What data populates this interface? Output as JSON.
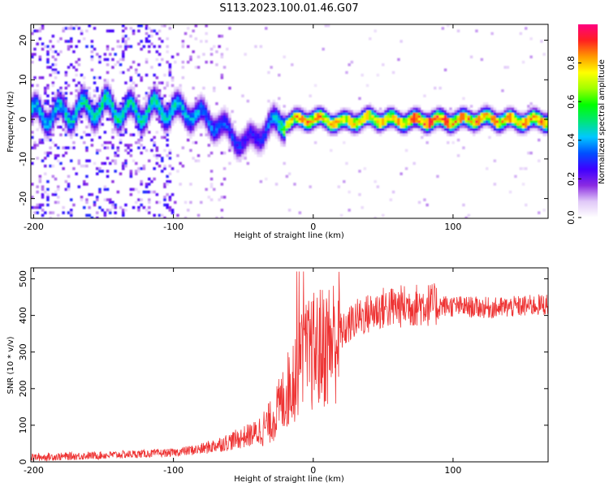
{
  "title": "S113.2023.100.01.46.G07",
  "chart_data": [
    {
      "type": "heatmap",
      "xlabel": "Height of straight line (km)",
      "ylabel": "Frequency (Hz)",
      "xlim": [
        -202,
        168
      ],
      "ylim": [
        -25,
        24
      ],
      "xticks": [
        "-200",
        "-100",
        "0",
        "100"
      ],
      "yticks": [
        "-20",
        "-10",
        "0",
        "10",
        "20"
      ],
      "colorbar": {
        "label": "Normalized spectral amplitude",
        "range": [
          0,
          1
        ],
        "ticks": [
          "0.0",
          "0.2",
          "0.4",
          "0.6",
          "0.8"
        ],
        "colors": [
          "#ffffff",
          "#e0c8f8",
          "#8a2be2",
          "#3f00ff",
          "#0050ff",
          "#00c8ff",
          "#00e676",
          "#00ff00",
          "#a0ff00",
          "#ffff00",
          "#ff9900",
          "#ff2020",
          "#ff0080"
        ]
      },
      "ridge": [
        {
          "x": -185,
          "f": 1.5,
          "amp": 0.45
        },
        {
          "x": -170,
          "f": 2.5,
          "amp": 0.5
        },
        {
          "x": -150,
          "f": 3.5,
          "amp": 0.55
        },
        {
          "x": -130,
          "f": 2.0,
          "amp": 0.5
        },
        {
          "x": -110,
          "f": 3.0,
          "amp": 0.5
        },
        {
          "x": -95,
          "f": 2.5,
          "amp": 0.45
        },
        {
          "x": -80,
          "f": 1.0,
          "amp": 0.4
        },
        {
          "x": -65,
          "f": -2.0,
          "amp": 0.35
        },
        {
          "x": -50,
          "f": -6.0,
          "amp": 0.3
        },
        {
          "x": -42,
          "f": -4.0,
          "amp": 0.3
        },
        {
          "x": -30,
          "f": -1.0,
          "amp": 0.4
        },
        {
          "x": -15,
          "f": 0.0,
          "amp": 0.85
        },
        {
          "x": 0,
          "f": 0.5,
          "amp": 0.85
        },
        {
          "x": 20,
          "f": -0.5,
          "amp": 0.8
        },
        {
          "x": 40,
          "f": 0.5,
          "amp": 0.8
        },
        {
          "x": 60,
          "f": 0.0,
          "amp": 0.85
        },
        {
          "x": 80,
          "f": 0.0,
          "amp": 0.95
        },
        {
          "x": 100,
          "f": 0.0,
          "amp": 0.9
        },
        {
          "x": 120,
          "f": 0.5,
          "amp": 0.85
        },
        {
          "x": 140,
          "f": 0.0,
          "amp": 0.85
        },
        {
          "x": 160,
          "f": 0.0,
          "amp": 0.85
        }
      ]
    },
    {
      "type": "line",
      "xlabel": "Height of straight line (km)",
      "ylabel": "SNR (10 * v/v)",
      "xlim": [
        -202,
        168
      ],
      "ylim": [
        0,
        530
      ],
      "xticks": [
        "-200",
        "-100",
        "0",
        "100"
      ],
      "yticks": [
        "0",
        "100",
        "200",
        "300",
        "400",
        "500"
      ],
      "line_color": "#ee3333",
      "trend": {
        "x": [
          -202,
          -150,
          -100,
          -80,
          -60,
          -40,
          -30,
          -20,
          -10,
          0,
          10,
          20,
          30,
          50,
          80,
          100,
          130,
          168
        ],
        "y": [
          12,
          18,
          25,
          35,
          55,
          80,
          110,
          180,
          270,
          300,
          320,
          350,
          390,
          420,
          430,
          425,
          420,
          430
        ]
      }
    }
  ]
}
